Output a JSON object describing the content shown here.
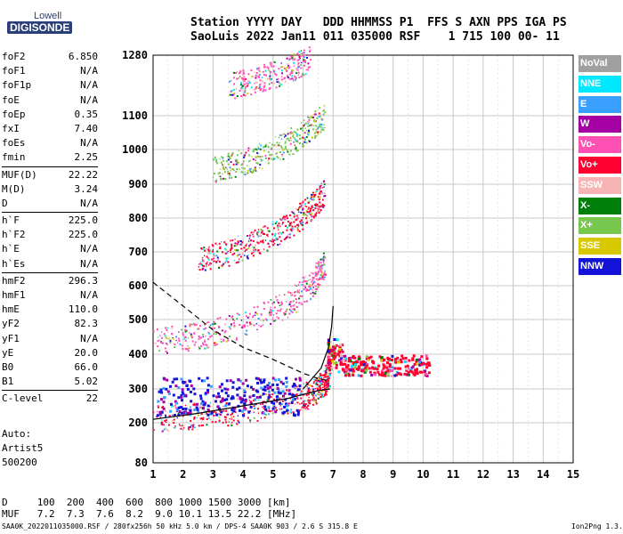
{
  "logo": {
    "top": "Lowell",
    "main": "DIGISONDE"
  },
  "header": {
    "line1": "Station YYYY DAY   DDD HHMMSS P1  FFS S AXN PPS IGA PS",
    "line2": "SaoLuis 2022 Jan11 011 035000 RSF    1 715 100 00- 11"
  },
  "params": [
    {
      "group": [
        {
          "label": "foF2",
          "value": "6.850"
        },
        {
          "label": "foF1",
          "value": "N/A"
        },
        {
          "label": "foF1p",
          "value": "N/A"
        },
        {
          "label": "foE",
          "value": "N/A"
        },
        {
          "label": "foEp",
          "value": "0.35"
        },
        {
          "label": "fxI",
          "value": "7.40"
        },
        {
          "label": "foEs",
          "value": "N/A"
        },
        {
          "label": "fmin",
          "value": "2.25"
        }
      ]
    },
    {
      "group": [
        {
          "label": "MUF(D)",
          "value": "22.22"
        },
        {
          "label": "M(D)",
          "value": "3.24"
        },
        {
          "label": "D",
          "value": "N/A"
        }
      ]
    },
    {
      "group": [
        {
          "label": "h`F",
          "value": "225.0"
        },
        {
          "label": "h`F2",
          "value": "225.0"
        },
        {
          "label": "h`E",
          "value": "N/A"
        },
        {
          "label": "h`Es",
          "value": "N/A"
        }
      ]
    },
    {
      "group": [
        {
          "label": "hmF2",
          "value": "296.3"
        },
        {
          "label": "hmF1",
          "value": "N/A"
        },
        {
          "label": "hmE",
          "value": "110.0"
        },
        {
          "label": "yF2",
          "value": "82.3"
        },
        {
          "label": "yF1",
          "value": "N/A"
        },
        {
          "label": "yE",
          "value": "20.0"
        },
        {
          "label": "B0",
          "value": "66.0"
        },
        {
          "label": "B1",
          "value": "5.02"
        }
      ]
    },
    {
      "group": [
        {
          "label": "C-level",
          "value": "22"
        }
      ]
    }
  ],
  "params_tail": {
    "auto": "Auto:",
    "artist": "Artist5",
    "code": "500200"
  },
  "legend": [
    {
      "label": "NoVal",
      "color": "#a0a0a0"
    },
    {
      "label": "NNE",
      "color": "#00e8ff"
    },
    {
      "label": "E",
      "color": "#3aa0ff"
    },
    {
      "label": "W",
      "color": "#a400a4"
    },
    {
      "label": "Vo-",
      "color": "#ff50b4"
    },
    {
      "label": "Vo+",
      "color": "#ff0030"
    },
    {
      "label": "SSW",
      "color": "#f8b4b4"
    },
    {
      "label": "X-",
      "color": "#00800a"
    },
    {
      "label": "X+",
      "color": "#78c850"
    },
    {
      "label": "SSE",
      "color": "#d8c800"
    },
    {
      "label": "NNW",
      "color": "#1414d8"
    }
  ],
  "bottom": {
    "d_line": "D     100  200  400  600  800 1000 1500 3000 [km]",
    "muf_line": "MUF   7.2  7.3  7.6  8.2  9.0 10.1 13.5 22.2 [MHz]"
  },
  "footer": {
    "left": "SAA0K_2022011035000.RSF / 280fx256h 50 kHz 5.0 km / DPS-4 SAA0K 903 / 2.6 S 315.8 E",
    "right": "Ion2Png 1.3.17"
  },
  "chart_data": {
    "type": "scatter",
    "x_ticks": [
      "1",
      "2",
      "3",
      "4",
      "5",
      "6",
      "7",
      "8",
      "9",
      "10",
      "11",
      "12",
      "13",
      "14",
      "15"
    ],
    "y_ticks": [
      "80",
      "200",
      "300",
      "400",
      "500",
      "600",
      "700",
      "800",
      "900",
      "1000",
      "1100",
      "1280"
    ],
    "xlim": [
      1,
      15
    ],
    "grid": true,
    "traces": [
      {
        "band": [
          [
            1.0,
            225
          ],
          [
            2.5,
            232
          ],
          [
            4.0,
            250
          ],
          [
            5.5,
            275
          ],
          [
            6.3,
            300
          ],
          [
            6.7,
            330
          ],
          [
            6.85,
            360
          ]
        ],
        "color": "#ff0030"
      },
      {
        "band": [
          [
            1.0,
            450
          ],
          [
            2.5,
            465
          ],
          [
            4.0,
            500
          ],
          [
            5.5,
            560
          ],
          [
            6.3,
            620
          ],
          [
            6.7,
            680
          ]
        ],
        "color": "#ff50b4"
      },
      {
        "band": [
          [
            2.5,
            690
          ],
          [
            3.5,
            710
          ],
          [
            4.5,
            745
          ],
          [
            5.5,
            790
          ],
          [
            6.2,
            840
          ],
          [
            6.7,
            890
          ]
        ],
        "color": "#ff0030"
      },
      {
        "band": [
          [
            3.0,
            955
          ],
          [
            4.0,
            975
          ],
          [
            5.0,
            1010
          ],
          [
            6.0,
            1060
          ],
          [
            6.7,
            1110
          ]
        ],
        "color": "#78c850"
      },
      {
        "band": [
          [
            3.5,
            1200
          ],
          [
            4.5,
            1220
          ],
          [
            5.5,
            1250
          ],
          [
            6.2,
            1280
          ]
        ],
        "color": "#ff50b4"
      }
    ],
    "spread": {
      "x": [
        6.8,
        10.2
      ],
      "y": [
        340,
        400
      ],
      "color": "#ff0030"
    },
    "profile_solid": [
      [
        1.0,
        210
      ],
      [
        2.5,
        228
      ],
      [
        4.0,
        250
      ],
      [
        5.5,
        272
      ],
      [
        6.5,
        295
      ],
      [
        6.9,
        300
      ]
    ],
    "profile_solid_upper": [
      [
        6.0,
        300
      ],
      [
        6.6,
        360
      ],
      [
        6.85,
        420
      ],
      [
        6.95,
        480
      ],
      [
        7.0,
        540
      ]
    ],
    "profile_dashed": [
      [
        1.0,
        610
      ],
      [
        2.0,
        540
      ],
      [
        3.0,
        470
      ],
      [
        4.0,
        420
      ],
      [
        5.0,
        385
      ],
      [
        6.0,
        345
      ],
      [
        6.5,
        330
      ],
      [
        6.8,
        325
      ]
    ]
  }
}
